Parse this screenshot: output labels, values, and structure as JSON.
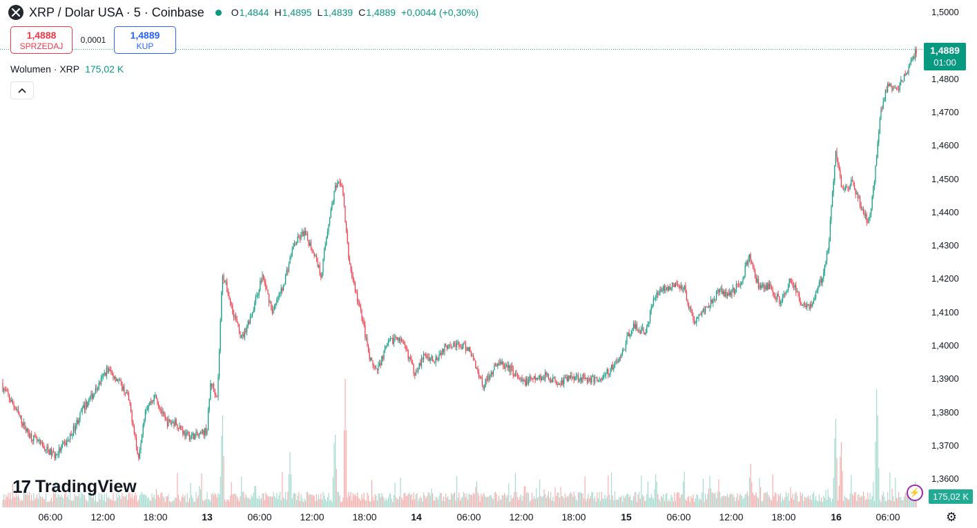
{
  "header": {
    "title": "XRP / Dolar USA · 5 · Coinbase",
    "ohlc": {
      "o_label": "O",
      "o": "1,4844",
      "h_label": "H",
      "h": "1,4895",
      "l_label": "L",
      "l": "1,4839",
      "c_label": "C",
      "c": "1,4889",
      "change": "+0,0044 (+0,30%)"
    },
    "status_color": "#089981"
  },
  "trade": {
    "sell_price": "1,4888",
    "sell_label": "SPRZEDAJ",
    "spread": "0,0001",
    "buy_price": "1,4889",
    "buy_label": "KUP"
  },
  "volume": {
    "label": "Wolumen · XRP",
    "value": "175,02 K",
    "tag": "175,02 K"
  },
  "collapse_icon": "^",
  "price_axis": {
    "ticks": [
      "1,5000",
      "1,4800",
      "1,4700",
      "1,4600",
      "1,4500",
      "1,4400",
      "1,4300",
      "1,4200",
      "1,4100",
      "1,4000",
      "1,3900",
      "1,3800",
      "1,3700",
      "1,3600"
    ],
    "current_price": "1,4889",
    "countdown": "01:00"
  },
  "time_axis": {
    "labels": [
      "06:00",
      "12:00",
      "18:00",
      "13",
      "06:00",
      "12:00",
      "18:00",
      "14",
      "06:00",
      "12:00",
      "18:00",
      "15",
      "06:00",
      "12:00",
      "18:00",
      "16",
      "06:00"
    ]
  },
  "branding": {
    "logo_mark": "17",
    "logo_text": "TradingView"
  },
  "colors": {
    "up": "#089981",
    "down": "#f23645",
    "vol_up": "#9fd8cc",
    "vol_down": "#f7a9a7"
  },
  "chart_data": {
    "type": "candlestick",
    "symbol": "XRP / Dolar USA",
    "interval": "5",
    "exchange": "Coinbase",
    "ylim": [
      1.355,
      1.5
    ],
    "anchors": [
      {
        "t": 0,
        "p": 1.389
      },
      {
        "t": 20,
        "p": 1.382
      },
      {
        "t": 40,
        "p": 1.374
      },
      {
        "t": 60,
        "p": 1.37
      },
      {
        "t": 80,
        "p": 1.367
      },
      {
        "t": 100,
        "p": 1.372
      },
      {
        "t": 120,
        "p": 1.381
      },
      {
        "t": 140,
        "p": 1.387
      },
      {
        "t": 155,
        "p": 1.393
      },
      {
        "t": 170,
        "p": 1.39
      },
      {
        "t": 185,
        "p": 1.385
      },
      {
        "t": 195,
        "p": 1.374
      },
      {
        "t": 200,
        "p": 1.366
      },
      {
        "t": 210,
        "p": 1.381
      },
      {
        "t": 225,
        "p": 1.385
      },
      {
        "t": 240,
        "p": 1.377
      },
      {
        "t": 255,
        "p": 1.377
      },
      {
        "t": 270,
        "p": 1.373
      },
      {
        "t": 290,
        "p": 1.373
      },
      {
        "t": 300,
        "p": 1.375
      },
      {
        "t": 305,
        "p": 1.389
      },
      {
        "t": 315,
        "p": 1.385
      },
      {
        "t": 322,
        "p": 1.422
      },
      {
        "t": 335,
        "p": 1.412
      },
      {
        "t": 350,
        "p": 1.402
      },
      {
        "t": 365,
        "p": 1.41
      },
      {
        "t": 380,
        "p": 1.421
      },
      {
        "t": 395,
        "p": 1.41
      },
      {
        "t": 410,
        "p": 1.418
      },
      {
        "t": 425,
        "p": 1.43
      },
      {
        "t": 440,
        "p": 1.434
      },
      {
        "t": 455,
        "p": 1.428
      },
      {
        "t": 465,
        "p": 1.421
      },
      {
        "t": 475,
        "p": 1.436
      },
      {
        "t": 485,
        "p": 1.447
      },
      {
        "t": 495,
        "p": 1.449
      },
      {
        "t": 505,
        "p": 1.426
      },
      {
        "t": 515,
        "p": 1.416
      },
      {
        "t": 525,
        "p": 1.408
      },
      {
        "t": 535,
        "p": 1.396
      },
      {
        "t": 545,
        "p": 1.392
      },
      {
        "t": 560,
        "p": 1.4
      },
      {
        "t": 575,
        "p": 1.403
      },
      {
        "t": 590,
        "p": 1.398
      },
      {
        "t": 600,
        "p": 1.392
      },
      {
        "t": 615,
        "p": 1.397
      },
      {
        "t": 630,
        "p": 1.396
      },
      {
        "t": 650,
        "p": 1.401
      },
      {
        "t": 665,
        "p": 1.4
      },
      {
        "t": 680,
        "p": 1.399
      },
      {
        "t": 700,
        "p": 1.388
      },
      {
        "t": 720,
        "p": 1.395
      },
      {
        "t": 740,
        "p": 1.393
      },
      {
        "t": 755,
        "p": 1.389
      },
      {
        "t": 775,
        "p": 1.39
      },
      {
        "t": 790,
        "p": 1.391
      },
      {
        "t": 810,
        "p": 1.389
      },
      {
        "t": 830,
        "p": 1.391
      },
      {
        "t": 850,
        "p": 1.39
      },
      {
        "t": 870,
        "p": 1.39
      },
      {
        "t": 885,
        "p": 1.393
      },
      {
        "t": 900,
        "p": 1.397
      },
      {
        "t": 915,
        "p": 1.406
      },
      {
        "t": 935,
        "p": 1.404
      },
      {
        "t": 950,
        "p": 1.416
      },
      {
        "t": 970,
        "p": 1.418
      },
      {
        "t": 990,
        "p": 1.418
      },
      {
        "t": 1005,
        "p": 1.407
      },
      {
        "t": 1020,
        "p": 1.411
      },
      {
        "t": 1040,
        "p": 1.416
      },
      {
        "t": 1060,
        "p": 1.416
      },
      {
        "t": 1075,
        "p": 1.42
      },
      {
        "t": 1085,
        "p": 1.427
      },
      {
        "t": 1100,
        "p": 1.417
      },
      {
        "t": 1115,
        "p": 1.418
      },
      {
        "t": 1130,
        "p": 1.413
      },
      {
        "t": 1145,
        "p": 1.42
      },
      {
        "t": 1160,
        "p": 1.413
      },
      {
        "t": 1175,
        "p": 1.412
      },
      {
        "t": 1190,
        "p": 1.42
      },
      {
        "t": 1200,
        "p": 1.43
      },
      {
        "t": 1210,
        "p": 1.458
      },
      {
        "t": 1220,
        "p": 1.447
      },
      {
        "t": 1235,
        "p": 1.449
      },
      {
        "t": 1250,
        "p": 1.44
      },
      {
        "t": 1258,
        "p": 1.437
      },
      {
        "t": 1265,
        "p": 1.447
      },
      {
        "t": 1275,
        "p": 1.47
      },
      {
        "t": 1285,
        "p": 1.478
      },
      {
        "t": 1300,
        "p": 1.477
      },
      {
        "t": 1315,
        "p": 1.483
      },
      {
        "t": 1328,
        "p": 1.4889
      }
    ],
    "volume_spikes": [
      {
        "t": 322,
        "v": 0.78
      },
      {
        "t": 500,
        "v": 0.98
      },
      {
        "t": 485,
        "v": 0.65
      },
      {
        "t": 1210,
        "v": 0.75
      },
      {
        "t": 1270,
        "v": 1.0
      },
      {
        "t": 1218,
        "v": 0.55
      },
      {
        "t": 1087,
        "v": 0.35
      },
      {
        "t": 420,
        "v": 0.42
      },
      {
        "t": 690,
        "v": 0.22
      },
      {
        "t": 950,
        "v": 0.28
      },
      {
        "t": 760,
        "v": 0.2
      },
      {
        "t": 1028,
        "v": 0.24
      }
    ],
    "last": {
      "open": 1.4844,
      "high": 1.4895,
      "low": 1.4839,
      "close": 1.4889
    },
    "change": "+0,0044 (+0,30%)",
    "volume": "175,02 K"
  }
}
